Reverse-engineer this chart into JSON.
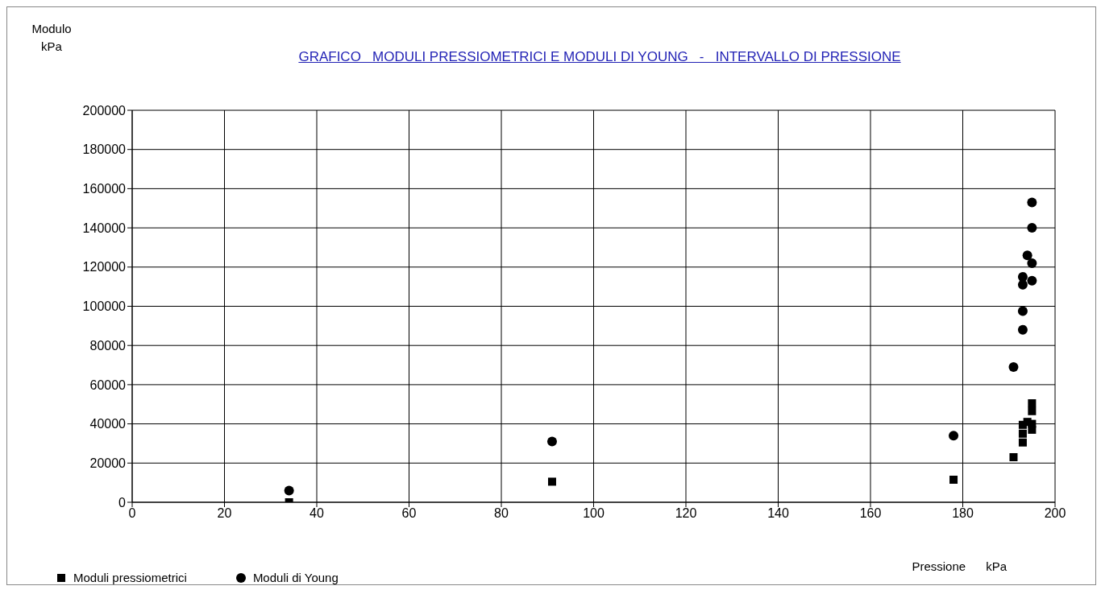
{
  "chart_data": {
    "type": "scatter",
    "title": "GRAFICO   MODULI PRESSIOMETRICI E MODULI DI YOUNG   -   INTERVALLO DI PRESSIONE",
    "ylabel": "Modulo\nkPa",
    "xlabel": "Pressione      kPa",
    "xlim": [
      0,
      200
    ],
    "xticks": [
      0,
      20,
      40,
      60,
      80,
      100,
      120,
      140,
      160,
      180,
      200
    ],
    "ylim": [
      0,
      200000
    ],
    "yticks": [
      0,
      20000,
      40000,
      60000,
      80000,
      100000,
      120000,
      140000,
      160000,
      180000,
      200000
    ],
    "grid": true,
    "legend": "bottom left",
    "series": [
      {
        "name": "Moduli pressiometrici",
        "color": "#000000",
        "marker": "square",
        "x": [
          34,
          91,
          178,
          191,
          193,
          193,
          193,
          194,
          195,
          195,
          195,
          195
        ],
        "values": [
          0,
          10500,
          11500,
          23000,
          30500,
          35000,
          39500,
          41000,
          40000,
          37000,
          46500,
          50500
        ]
      },
      {
        "name": "Moduli di Young",
        "color": "#000000",
        "marker": "circle",
        "x": [
          34,
          91,
          178,
          191,
          193,
          193,
          193,
          193,
          194,
          195,
          195,
          195,
          195
        ],
        "values": [
          6000,
          31000,
          34000,
          69000,
          88000,
          97500,
          111000,
          115000,
          126000,
          122000,
          113000,
          140000,
          153000
        ]
      }
    ]
  }
}
